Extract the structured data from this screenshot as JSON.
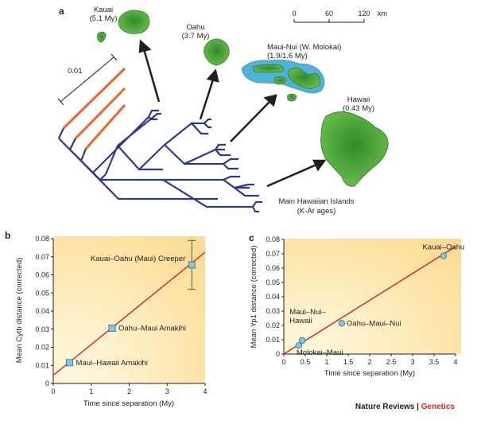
{
  "colors": {
    "branch_blue": "#2b3990",
    "branch_orange": "#f26522",
    "island_green": "#3a9a35",
    "reef_blue": "#4fb3d8",
    "fit_line": "#e2231a",
    "panel_bg": "#fdeab7",
    "point_fill": "#7fc8e0"
  },
  "panel_a": {
    "label": "a",
    "scale_bar_tree": "0.01",
    "scale_bar_km_ticks": [
      "0",
      "60",
      "120"
    ],
    "scale_bar_km_unit": "km",
    "islands": [
      {
        "name": "Kauai",
        "age": "(5.1 My)"
      },
      {
        "name": "Oahu",
        "age": "(3.7 My)"
      },
      {
        "name": "Maui-Nui (W. Molokai)",
        "age": "(1.9/1.6 My)"
      },
      {
        "name": "Hawaii",
        "age": "(0.43 My)"
      }
    ],
    "caption_line1": "Main Hawaiian Islands",
    "caption_line2": "(K-Ar ages)"
  },
  "panel_b": {
    "label": "b",
    "chart_data": {
      "type": "scatter",
      "xlabel": "Time since separation (My)",
      "ylabel": "Mean Cytb distance (corrected)",
      "xlim": [
        0,
        4
      ],
      "ylim": [
        0,
        0.08
      ],
      "xticks": [
        "0",
        "1",
        "2",
        "3",
        "4"
      ],
      "yticks": [
        "0",
        "0.01",
        "0.02",
        "0.03",
        "0.04",
        "0.05",
        "0.06",
        "0.07",
        "0.08"
      ],
      "points": [
        {
          "x": 0.43,
          "y": 0.0115,
          "yerr": 0.0015,
          "label": "Maui–Hawaii Amakihi"
        },
        {
          "x": 1.55,
          "y": 0.0305,
          "yerr": 0.0015,
          "label": "Oahu–Maui Amakihi"
        },
        {
          "x": 3.65,
          "y": 0.0655,
          "yerr": 0.0135,
          "label": "Kauai–Oahu (Maui) Creeper"
        }
      ],
      "fit": {
        "x": [
          0,
          4
        ],
        "y": [
          0.0045,
          0.0725
        ]
      }
    }
  },
  "panel_c": {
    "label": "c",
    "chart_data": {
      "type": "scatter",
      "xlabel": "Time since separation (My)",
      "ylabel": "Mean Yp1 distance (corrected)",
      "xlim": [
        0,
        4
      ],
      "ylim": [
        0,
        0.08
      ],
      "xticks": [
        "0",
        "0.5",
        "1",
        "1.5",
        "2",
        "2.5",
        "3",
        "3.5",
        "4"
      ],
      "yticks": [
        "0",
        "0.01",
        "0.02",
        "0.03",
        "0.04",
        "0.05",
        "0.06",
        "0.07",
        "0.08"
      ],
      "points": [
        {
          "x": 0.43,
          "y": 0.0095,
          "label": "Maui–Nui–Hawaii"
        },
        {
          "x": 0.35,
          "y": 0.006,
          "label": "Molokai–Maui"
        },
        {
          "x": 1.35,
          "y": 0.0215,
          "label": "Oahu–Maui–Nui"
        },
        {
          "x": 3.72,
          "y": 0.0685,
          "label": "Kauai–Oahu"
        }
      ],
      "fit": {
        "x": [
          0,
          4
        ],
        "y": [
          0.0,
          0.075
        ]
      }
    }
  },
  "credit": {
    "journal": "Nature Reviews",
    "separator": "|",
    "section": "Genetics"
  }
}
